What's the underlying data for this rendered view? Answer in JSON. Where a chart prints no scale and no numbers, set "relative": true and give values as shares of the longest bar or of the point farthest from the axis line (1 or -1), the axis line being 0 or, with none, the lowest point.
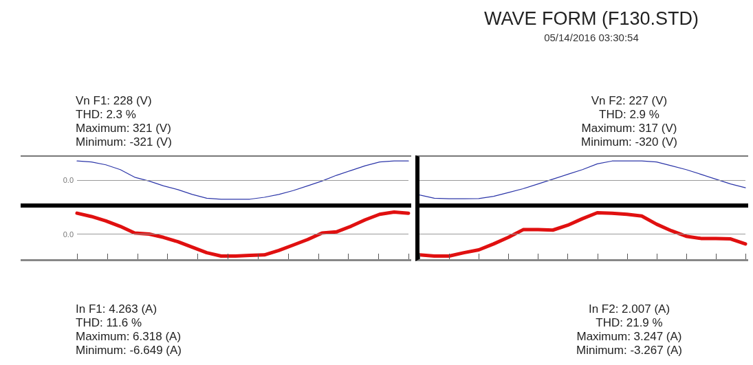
{
  "chart_data": [
    {
      "type": "line",
      "relative": true,
      "categories": [
        null,
        null,
        null,
        null,
        null,
        null,
        null,
        null,
        null,
        null,
        null,
        null,
        null,
        null,
        null,
        null,
        null,
        null,
        null,
        null,
        null,
        null,
        null,
        null
      ],
      "series": [
        {
          "color": "#2b35a8",
          "values": [
            1.0,
            0.95,
            0.8,
            0.55,
            0.15,
            -0.05,
            -0.3,
            -0.5,
            -0.75,
            -0.95,
            -1.0,
            -1.0,
            -1.0,
            -0.9,
            -0.75,
            -0.55,
            -0.3,
            -0.05,
            0.25,
            0.5,
            0.75,
            0.95,
            1.0,
            1.0
          ]
        }
      ],
      "ref_lines": [
        {
          "axis": "y",
          "value": 0,
          "label": "0.0",
          "color": "#999999"
        }
      ],
      "annotations": [
        "Vn F1: 228 (V)",
        "THD: 2.3 %",
        "Maximum: 321 (V)",
        "Minimum: -321 (V)"
      ]
    },
    {
      "type": "line",
      "relative": true,
      "categories": [
        null,
        null,
        null,
        null,
        null,
        null,
        null,
        null,
        null,
        null,
        null,
        null,
        null,
        null,
        null,
        null,
        null,
        null,
        null,
        null,
        null,
        null,
        null,
        null
      ],
      "series": [
        {
          "color": "#e01010",
          "values": [
            0.95,
            0.8,
            0.6,
            0.35,
            0.05,
            0.0,
            -0.15,
            -0.35,
            -0.6,
            -0.85,
            -1.0,
            -1.0,
            -0.97,
            -0.95,
            -0.75,
            -0.5,
            -0.25,
            0.05,
            0.1,
            0.35,
            0.65,
            0.9,
            1.0,
            0.95
          ]
        }
      ],
      "ref_lines": [
        {
          "axis": "y",
          "value": 0,
          "label": "0.0",
          "color": "#999999"
        }
      ],
      "annotations": [
        "In F1: 4.263 (A)",
        "THD: 11.6 %",
        "Maximum: 6.318 (A)",
        "Minimum: -6.649 (A)"
      ]
    },
    {
      "type": "line",
      "title": "WAVE FORM (F130.STD)",
      "subtitle": "05/14/2016 03:30:54",
      "relative": true,
      "categories": [
        null,
        null,
        null,
        null,
        null,
        null,
        null,
        null,
        null,
        null,
        null,
        null,
        null,
        null,
        null,
        null,
        null,
        null,
        null,
        null,
        null,
        null,
        null
      ],
      "series": [
        {
          "color": "#2b35a8",
          "values": [
            -0.78,
            -0.95,
            -0.98,
            -0.98,
            -0.97,
            -0.85,
            -0.65,
            -0.45,
            -0.2,
            0.05,
            0.3,
            0.55,
            0.85,
            1.0,
            1.0,
            1.0,
            0.95,
            0.75,
            0.55,
            0.3,
            0.05,
            -0.2,
            -0.4
          ]
        }
      ],
      "ref_lines": [
        {
          "axis": "y",
          "value": 0,
          "label": null,
          "color": "#999999"
        }
      ],
      "annotations": [
        "Vn F2: 227 (V)",
        "THD: 2.9 %",
        "Maximum: 317 (V)",
        "Minimum: -320 (V)"
      ]
    },
    {
      "type": "line",
      "relative": true,
      "categories": [
        null,
        null,
        null,
        null,
        null,
        null,
        null,
        null,
        null,
        null,
        null,
        null,
        null,
        null,
        null,
        null,
        null,
        null,
        null,
        null,
        null,
        null,
        null
      ],
      "series": [
        {
          "color": "#e01010",
          "values": [
            -0.95,
            -1.0,
            -1.0,
            -0.85,
            -0.72,
            -0.45,
            -0.15,
            0.2,
            0.2,
            0.18,
            0.4,
            0.7,
            0.97,
            0.95,
            0.9,
            0.82,
            0.45,
            0.15,
            -0.1,
            -0.2,
            -0.2,
            -0.22,
            -0.45
          ]
        }
      ],
      "ref_lines": [
        {
          "axis": "y",
          "value": 0,
          "label": null,
          "color": "#999999"
        }
      ],
      "annotations": [
        "In F2: 2.007 (A)",
        "THD: 21.9 %",
        "Maximum: 3.247 (A)",
        "Minimum: -3.267 (A)"
      ]
    }
  ]
}
